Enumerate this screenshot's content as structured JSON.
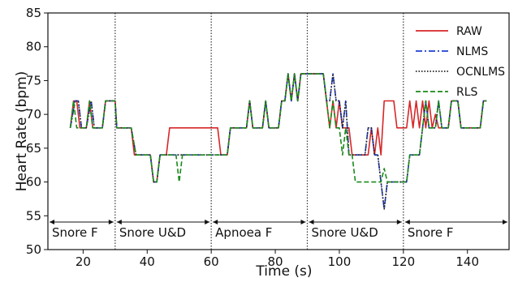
{
  "chart_data": {
    "type": "line",
    "xlabel": "Time (s)",
    "ylabel": "Heart Rate (bpm)",
    "xlim": [
      9,
      153
    ],
    "ylim": [
      50,
      85
    ],
    "xticks": [
      20,
      40,
      60,
      80,
      100,
      120,
      140
    ],
    "yticks": [
      50,
      55,
      60,
      65,
      70,
      75,
      80,
      85
    ],
    "legend_position": "top-right",
    "boundaries": [
      30,
      60,
      90,
      120
    ],
    "segments": [
      {
        "label": "Snore F",
        "x_start": 9,
        "x_end": 30
      },
      {
        "label": "Snore U&D",
        "x_start": 30,
        "x_end": 60
      },
      {
        "label": "Apnoea F",
        "x_start": 60,
        "x_end": 90
      },
      {
        "label": "Snore U&D",
        "x_start": 90,
        "x_end": 120
      },
      {
        "label": "Snore F",
        "x_start": 120,
        "x_end": 153
      }
    ],
    "series": [
      {
        "name": "RAW",
        "color": "#d62728",
        "style": "solid",
        "points": [
          [
            16,
            68
          ],
          [
            17,
            72
          ],
          [
            18,
            72
          ],
          [
            19,
            68
          ],
          [
            21,
            68
          ],
          [
            22,
            72
          ],
          [
            23,
            68
          ],
          [
            26,
            68
          ],
          [
            27,
            72
          ],
          [
            30,
            72
          ],
          [
            30.5,
            68
          ],
          [
            35,
            68
          ],
          [
            36,
            64
          ],
          [
            41,
            64
          ],
          [
            42,
            60
          ],
          [
            43,
            60
          ],
          [
            44,
            64
          ],
          [
            46,
            64
          ],
          [
            47,
            68
          ],
          [
            62,
            68
          ],
          [
            63,
            64
          ],
          [
            65,
            64
          ],
          [
            66,
            68
          ],
          [
            71,
            68
          ],
          [
            72,
            72
          ],
          [
            73,
            68
          ],
          [
            76,
            68
          ],
          [
            77,
            72
          ],
          [
            78,
            68
          ],
          [
            81,
            68
          ],
          [
            82,
            72
          ],
          [
            83,
            72
          ],
          [
            84,
            76
          ],
          [
            85,
            72
          ],
          [
            86,
            76
          ],
          [
            87,
            72
          ],
          [
            88,
            76
          ],
          [
            95,
            76
          ],
          [
            96,
            72
          ],
          [
            97,
            68
          ],
          [
            98,
            72
          ],
          [
            99,
            68
          ],
          [
            100,
            72
          ],
          [
            101,
            68
          ],
          [
            103,
            68
          ],
          [
            104,
            64
          ],
          [
            109,
            64
          ],
          [
            110,
            68
          ],
          [
            111,
            64
          ],
          [
            112,
            68
          ],
          [
            113,
            64
          ],
          [
            114,
            72
          ],
          [
            117,
            72
          ],
          [
            118,
            68
          ],
          [
            121,
            68
          ],
          [
            122,
            72
          ],
          [
            123,
            68
          ],
          [
            124,
            72
          ],
          [
            125,
            68
          ],
          [
            126,
            72
          ],
          [
            127,
            68
          ],
          [
            128,
            72
          ],
          [
            129,
            68
          ],
          [
            130,
            70
          ],
          [
            131,
            68
          ],
          [
            134,
            68
          ],
          [
            135,
            72
          ],
          [
            137,
            72
          ],
          [
            138,
            68
          ],
          [
            144,
            68
          ],
          [
            145,
            72
          ],
          [
            146,
            72
          ]
        ]
      },
      {
        "name": "NLMS",
        "color": "#1f3fd0",
        "style": "dashdot",
        "points": [
          [
            16,
            68
          ],
          [
            17.5,
            72
          ],
          [
            18.5,
            72
          ],
          [
            19.5,
            68
          ],
          [
            21,
            68
          ],
          [
            22.5,
            72
          ],
          [
            23.5,
            68
          ],
          [
            26,
            68
          ],
          [
            27,
            72
          ],
          [
            30,
            72
          ],
          [
            30.5,
            68
          ],
          [
            35,
            68
          ],
          [
            36.5,
            64
          ],
          [
            41,
            64
          ],
          [
            42,
            60
          ],
          [
            43,
            60
          ],
          [
            44,
            64
          ],
          [
            59,
            64
          ],
          [
            60,
            64
          ],
          [
            62,
            64
          ],
          [
            63,
            64
          ],
          [
            65,
            64
          ],
          [
            66,
            68
          ],
          [
            71,
            68
          ],
          [
            72,
            72
          ],
          [
            73,
            68
          ],
          [
            76,
            68
          ],
          [
            77,
            72
          ],
          [
            78,
            68
          ],
          [
            81,
            68
          ],
          [
            82,
            72
          ],
          [
            83,
            72
          ],
          [
            84,
            76
          ],
          [
            85,
            72
          ],
          [
            86,
            76
          ],
          [
            87,
            72
          ],
          [
            88,
            76
          ],
          [
            95,
            76
          ],
          [
            96,
            72
          ],
          [
            97,
            72
          ],
          [
            98,
            76
          ],
          [
            99,
            72
          ],
          [
            100,
            72
          ],
          [
            101,
            68
          ],
          [
            102,
            72
          ],
          [
            103,
            64
          ],
          [
            106,
            64
          ],
          [
            107,
            64
          ],
          [
            108,
            64
          ],
          [
            109,
            68
          ],
          [
            110,
            68
          ],
          [
            111,
            64
          ],
          [
            112,
            64
          ],
          [
            113,
            60
          ],
          [
            114,
            56
          ],
          [
            115,
            60
          ],
          [
            117,
            60
          ],
          [
            118,
            60
          ],
          [
            121,
            60
          ],
          [
            122,
            64
          ],
          [
            125,
            64
          ],
          [
            126,
            68
          ],
          [
            127,
            72
          ],
          [
            128,
            68
          ],
          [
            130,
            68
          ],
          [
            131,
            72
          ],
          [
            132,
            68
          ],
          [
            134,
            68
          ],
          [
            135,
            72
          ],
          [
            137,
            72
          ],
          [
            138,
            68
          ],
          [
            144,
            68
          ],
          [
            145,
            72
          ],
          [
            146,
            72
          ]
        ]
      },
      {
        "name": "OCNLMS",
        "color": "#222222",
        "style": "dotted",
        "points": [
          [
            16,
            68
          ],
          [
            17.5,
            72
          ],
          [
            18.5,
            72
          ],
          [
            19.5,
            68
          ],
          [
            21,
            68
          ],
          [
            22.5,
            72
          ],
          [
            23.5,
            68
          ],
          [
            26,
            68
          ],
          [
            27,
            72
          ],
          [
            30,
            72
          ],
          [
            30.5,
            68
          ],
          [
            35,
            68
          ],
          [
            36.5,
            64
          ],
          [
            41,
            64
          ],
          [
            42,
            60
          ],
          [
            43,
            60
          ],
          [
            44,
            64
          ],
          [
            60,
            64
          ],
          [
            63,
            64
          ],
          [
            65,
            64
          ],
          [
            66,
            68
          ],
          [
            71,
            68
          ],
          [
            72,
            72
          ],
          [
            73,
            68
          ],
          [
            76,
            68
          ],
          [
            77,
            72
          ],
          [
            78,
            68
          ],
          [
            81,
            68
          ],
          [
            82,
            72
          ],
          [
            83,
            72
          ],
          [
            84,
            76
          ],
          [
            85,
            72
          ],
          [
            86,
            76
          ],
          [
            87,
            72
          ],
          [
            88,
            76
          ],
          [
            95,
            76
          ],
          [
            96,
            72
          ],
          [
            97,
            72
          ],
          [
            98,
            76
          ],
          [
            99,
            72
          ],
          [
            100,
            72
          ],
          [
            101,
            68
          ],
          [
            102,
            72
          ],
          [
            103,
            64
          ],
          [
            108,
            64
          ],
          [
            109,
            68
          ],
          [
            110,
            68
          ],
          [
            111,
            64
          ],
          [
            112,
            64
          ],
          [
            113,
            60
          ],
          [
            114,
            56
          ],
          [
            115,
            60
          ],
          [
            121,
            60
          ],
          [
            122,
            64
          ],
          [
            125,
            64
          ],
          [
            126,
            68
          ],
          [
            127,
            72
          ],
          [
            128,
            68
          ],
          [
            130,
            68
          ],
          [
            131,
            72
          ],
          [
            132,
            68
          ],
          [
            134,
            68
          ],
          [
            135,
            72
          ],
          [
            137,
            72
          ],
          [
            138,
            68
          ],
          [
            144,
            68
          ],
          [
            145,
            72
          ],
          [
            146,
            72
          ]
        ]
      },
      {
        "name": "RLS",
        "color": "#1a8a1a",
        "style": "dashed",
        "points": [
          [
            16,
            68
          ],
          [
            17,
            72
          ],
          [
            18,
            68
          ],
          [
            21,
            68
          ],
          [
            22,
            72
          ],
          [
            23,
            68
          ],
          [
            26,
            68
          ],
          [
            27,
            72
          ],
          [
            30,
            72
          ],
          [
            30.5,
            68
          ],
          [
            35,
            68
          ],
          [
            36.5,
            64
          ],
          [
            41,
            64
          ],
          [
            42,
            60
          ],
          [
            43,
            60
          ],
          [
            44,
            64
          ],
          [
            49,
            64
          ],
          [
            50,
            60
          ],
          [
            51,
            64
          ],
          [
            60,
            64
          ],
          [
            63,
            64
          ],
          [
            65,
            64
          ],
          [
            66,
            68
          ],
          [
            71,
            68
          ],
          [
            72,
            72
          ],
          [
            73,
            68
          ],
          [
            76,
            68
          ],
          [
            77,
            72
          ],
          [
            78,
            68
          ],
          [
            81,
            68
          ],
          [
            82,
            72
          ],
          [
            83,
            72
          ],
          [
            84,
            76
          ],
          [
            85,
            72
          ],
          [
            86,
            76
          ],
          [
            87,
            72
          ],
          [
            88,
            76
          ],
          [
            95,
            76
          ],
          [
            96,
            72
          ],
          [
            97,
            68
          ],
          [
            98,
            72
          ],
          [
            99,
            68
          ],
          [
            100,
            68
          ],
          [
            101,
            64
          ],
          [
            102,
            68
          ],
          [
            103,
            64
          ],
          [
            104,
            64
          ],
          [
            105,
            60
          ],
          [
            113,
            60
          ],
          [
            114,
            62
          ],
          [
            115,
            60
          ],
          [
            121,
            60
          ],
          [
            122,
            64
          ],
          [
            125,
            64
          ],
          [
            126,
            68
          ],
          [
            127,
            72
          ],
          [
            128,
            68
          ],
          [
            130,
            68
          ],
          [
            131,
            72
          ],
          [
            132,
            68
          ],
          [
            134,
            68
          ],
          [
            135,
            72
          ],
          [
            137,
            72
          ],
          [
            138,
            68
          ],
          [
            144,
            68
          ],
          [
            145,
            72
          ],
          [
            146,
            72
          ]
        ]
      }
    ]
  }
}
